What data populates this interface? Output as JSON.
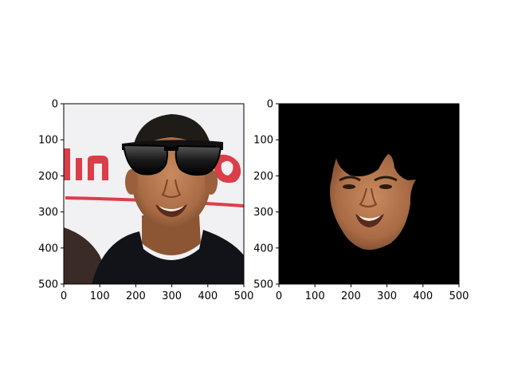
{
  "figure": {
    "background": "#ffffff",
    "axis_color": "#000000"
  },
  "chart_data": [
    {
      "type": "image",
      "content": "photo of a man's face wearing black sunglasses, red and white text in background",
      "title": "",
      "xlabel": "",
      "ylabel": "",
      "xlim": [
        0,
        500
      ],
      "ylim": [
        500,
        0
      ],
      "y_inverted": true,
      "xticks": [
        0,
        100,
        200,
        300,
        400,
        500
      ],
      "yticks": [
        0,
        100,
        200,
        300,
        400,
        500
      ],
      "xtick_labels": [
        "0",
        "100",
        "200",
        "300",
        "400",
        "500"
      ],
      "ytick_labels": [
        "0",
        "100",
        "200",
        "300",
        "400",
        "500"
      ],
      "grid": false
    },
    {
      "type": "image",
      "content": "segmented face on black background",
      "title": "",
      "xlabel": "",
      "ylabel": "",
      "xlim": [
        0,
        500
      ],
      "ylim": [
        500,
        0
      ],
      "y_inverted": true,
      "background_color": "#000000",
      "xticks": [
        0,
        100,
        200,
        300,
        400,
        500
      ],
      "yticks": [
        0,
        100,
        200,
        300,
        400,
        500
      ],
      "xtick_labels": [
        "0",
        "100",
        "200",
        "300",
        "400",
        "500"
      ],
      "ytick_labels": [
        "0",
        "100",
        "200",
        "300",
        "400",
        "500"
      ],
      "grid": false
    }
  ]
}
